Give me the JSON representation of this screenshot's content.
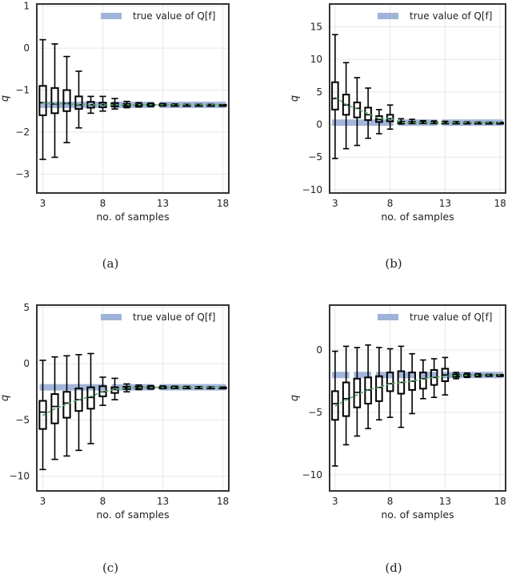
{
  "legend_label": "true value of Q[f]",
  "captions": [
    "(a)",
    "(b)",
    "(c)",
    "(d)"
  ],
  "colors": {
    "truth": "#9fb3d9",
    "mean": "#55a868",
    "box": "#000000",
    "grid": "#e6e6e6",
    "frame": "#333333"
  },
  "chart_data": [
    {
      "type": "box",
      "xlabel": "no. of samples",
      "ylabel": "q",
      "xlim": [
        2.5,
        18.5
      ],
      "ylim": [
        -3.45,
        1.05
      ],
      "xticks": [
        3,
        8,
        13,
        18
      ],
      "yticks": [
        -3,
        -2,
        -1,
        0,
        1
      ],
      "legend": "top-right",
      "true_value": -1.35,
      "true_value_segments": [
        [
          3,
          8
        ],
        [
          9,
          12
        ],
        [
          13,
          18
        ]
      ],
      "x": [
        3,
        4,
        5,
        6,
        7,
        8,
        9,
        10,
        11,
        12,
        13,
        14,
        15,
        16,
        17,
        18
      ],
      "whislo": [
        -2.65,
        -2.6,
        -2.25,
        -1.9,
        -1.55,
        -1.5,
        -1.45,
        -1.42,
        -1.4,
        -1.39,
        -1.38,
        -1.37,
        -1.36,
        -1.36,
        -1.36,
        -1.35
      ],
      "q1": [
        -1.6,
        -1.55,
        -1.5,
        -1.45,
        -1.42,
        -1.41,
        -1.39,
        -1.38,
        -1.37,
        -1.37,
        -1.36,
        -1.36,
        -1.36,
        -1.35,
        -1.35,
        -1.35
      ],
      "median": [
        -1.3,
        -1.33,
        -1.32,
        -1.35,
        -1.35,
        -1.35,
        -1.35,
        -1.35,
        -1.35,
        -1.35,
        -1.35,
        -1.35,
        -1.35,
        -1.35,
        -1.35,
        -1.35
      ],
      "q3": [
        -0.9,
        -0.95,
        -1.0,
        -1.15,
        -1.28,
        -1.3,
        -1.31,
        -1.33,
        -1.34,
        -1.34,
        -1.34,
        -1.35,
        -1.35,
        -1.35,
        -1.35,
        -1.35
      ],
      "whishi": [
        0.2,
        0.1,
        -0.2,
        -0.55,
        -1.15,
        -1.15,
        -1.2,
        -1.27,
        -1.3,
        -1.31,
        -1.32,
        -1.33,
        -1.34,
        -1.34,
        -1.34,
        -1.35
      ],
      "mean": [
        -1.3,
        -1.32,
        -1.33,
        -1.34,
        -1.35,
        -1.35,
        -1.35,
        -1.35,
        -1.35,
        -1.35,
        -1.35,
        -1.35,
        -1.35,
        -1.35,
        -1.35,
        -1.35
      ]
    },
    {
      "type": "box",
      "xlabel": "no. of samples",
      "ylabel": "q",
      "xlim": [
        2.5,
        18.5
      ],
      "ylim": [
        -10.5,
        18.5
      ],
      "xticks": [
        3,
        8,
        13,
        18
      ],
      "yticks": [
        -10,
        -5,
        0,
        5,
        10,
        15
      ],
      "legend": "top-right",
      "true_value": 0.3,
      "true_value_segments": [
        [
          3,
          8
        ],
        [
          9,
          12
        ],
        [
          13,
          18
        ]
      ],
      "x": [
        3,
        4,
        5,
        6,
        7,
        8,
        9,
        10,
        11,
        12,
        13,
        14,
        15,
        16,
        17,
        18
      ],
      "whislo": [
        -5.2,
        -3.7,
        -3.2,
        -2.1,
        -1.4,
        -0.7,
        0.1,
        0.15,
        0.2,
        0.2,
        0.22,
        0.24,
        0.25,
        0.26,
        0.28,
        0.28
      ],
      "q1": [
        2.3,
        1.5,
        1.1,
        0.7,
        0.4,
        0.5,
        0.22,
        0.24,
        0.26,
        0.27,
        0.28,
        0.28,
        0.29,
        0.29,
        0.3,
        0.3
      ],
      "median": [
        4.0,
        3.0,
        2.5,
        1.5,
        0.8,
        0.9,
        0.3,
        0.3,
        0.3,
        0.3,
        0.3,
        0.3,
        0.3,
        0.3,
        0.3,
        0.3
      ],
      "q3": [
        6.5,
        4.6,
        3.4,
        2.6,
        1.3,
        1.5,
        0.45,
        0.42,
        0.38,
        0.36,
        0.34,
        0.33,
        0.32,
        0.32,
        0.31,
        0.31
      ],
      "whishi": [
        13.8,
        9.5,
        7.2,
        5.6,
        2.3,
        3.0,
        0.9,
        0.8,
        0.6,
        0.55,
        0.5,
        0.45,
        0.4,
        0.38,
        0.36,
        0.34
      ],
      "mean": [
        4.2,
        3.1,
        2.4,
        1.7,
        0.9,
        1.0,
        0.32,
        0.31,
        0.3,
        0.3,
        0.3,
        0.3,
        0.3,
        0.3,
        0.3,
        0.3
      ]
    },
    {
      "type": "box",
      "xlabel": "no. of samples",
      "ylabel": "q",
      "xlim": [
        2.5,
        18.5
      ],
      "ylim": [
        -11.3,
        5.2
      ],
      "xticks": [
        3,
        8,
        13,
        18
      ],
      "yticks": [
        -10,
        -5,
        0,
        5
      ],
      "legend": "top-right",
      "true_value": -2.1,
      "true_value_segments": [
        [
          3,
          8
        ],
        [
          9,
          12
        ],
        [
          13,
          18
        ]
      ],
      "x": [
        3,
        4,
        5,
        6,
        7,
        8,
        9,
        10,
        11,
        12,
        13,
        14,
        15,
        16,
        17,
        18
      ],
      "whislo": [
        -9.4,
        -8.5,
        -8.2,
        -7.7,
        -7.1,
        -3.7,
        -3.2,
        -2.5,
        -2.3,
        -2.25,
        -2.2,
        -2.18,
        -2.15,
        -2.13,
        -2.12,
        -2.11
      ],
      "q1": [
        -5.8,
        -5.3,
        -4.8,
        -4.2,
        -4.0,
        -2.9,
        -2.6,
        -2.25,
        -2.18,
        -2.15,
        -2.14,
        -2.13,
        -2.12,
        -2.11,
        -2.11,
        -2.1
      ],
      "median": [
        -4.3,
        -3.8,
        -3.5,
        -3.2,
        -3.0,
        -2.5,
        -2.3,
        -2.15,
        -2.12,
        -2.11,
        -2.1,
        -2.1,
        -2.1,
        -2.1,
        -2.1,
        -2.1
      ],
      "q3": [
        -3.3,
        -2.7,
        -2.5,
        -2.2,
        -2.1,
        -2.0,
        -2.1,
        -2.05,
        -2.05,
        -2.07,
        -2.08,
        -2.08,
        -2.09,
        -2.09,
        -2.1,
        -2.1
      ],
      "whishi": [
        0.3,
        0.6,
        0.7,
        0.8,
        0.9,
        -1.2,
        -1.3,
        -1.8,
        -1.9,
        -1.95,
        -1.98,
        -2.0,
        -2.02,
        -2.04,
        -2.06,
        -2.08
      ],
      "mean": [
        -4.6,
        -4.0,
        -3.6,
        -3.2,
        -2.9,
        -2.5,
        -2.3,
        -2.15,
        -2.12,
        -2.11,
        -2.1,
        -2.1,
        -2.1,
        -2.1,
        -2.1,
        -2.1
      ]
    },
    {
      "type": "box",
      "xlabel": "no. of samples",
      "ylabel": "q",
      "xlim": [
        2.5,
        18.5
      ],
      "ylim": [
        -11.3,
        3.6
      ],
      "xticks": [
        3,
        8,
        13,
        18
      ],
      "yticks": [
        -10,
        -5,
        0
      ],
      "legend": "top-right",
      "true_value": -2.0,
      "true_value_segments": [
        [
          3,
          4
        ],
        [
          5,
          6
        ],
        [
          7,
          8
        ],
        [
          9,
          10
        ],
        [
          11,
          12
        ],
        [
          13,
          18
        ]
      ],
      "x": [
        3,
        4,
        5,
        6,
        7,
        8,
        9,
        10,
        11,
        12,
        13,
        14,
        15,
        16,
        17,
        18
      ],
      "whislo": [
        -9.3,
        -7.6,
        -6.9,
        -6.3,
        -5.6,
        -5.4,
        -6.2,
        -5.1,
        -3.9,
        -3.8,
        -3.6,
        -2.3,
        -2.2,
        -2.15,
        -2.1,
        -2.05
      ],
      "q1": [
        -5.6,
        -5.3,
        -4.6,
        -4.3,
        -4.1,
        -3.3,
        -3.5,
        -3.2,
        -3.1,
        -2.8,
        -2.5,
        -2.15,
        -2.1,
        -2.07,
        -2.04,
        -2.02
      ],
      "median": [
        -4.3,
        -3.9,
        -3.4,
        -3.2,
        -3.0,
        -2.7,
        -2.6,
        -2.5,
        -2.3,
        -2.2,
        -2.0,
        -2.05,
        -2.03,
        -2.02,
        -2.01,
        -2.0
      ],
      "q3": [
        -3.3,
        -2.6,
        -2.3,
        -2.2,
        -2.1,
        -1.8,
        -1.7,
        -1.8,
        -1.8,
        -1.6,
        -1.5,
        -1.95,
        -1.97,
        -1.98,
        -1.99,
        -2.0
      ],
      "whishi": [
        -0.1,
        0.3,
        0.2,
        0.4,
        0.2,
        0.1,
        0.3,
        -0.3,
        -0.8,
        -0.7,
        -0.6,
        -1.8,
        -1.85,
        -1.9,
        -1.95,
        -1.98
      ],
      "mean": [
        -4.5,
        -4.0,
        -3.6,
        -3.2,
        -3.0,
        -2.7,
        -2.6,
        -2.5,
        -2.3,
        -2.2,
        -2.1,
        -2.05,
        -2.03,
        -2.02,
        -2.01,
        -2.0
      ]
    }
  ]
}
